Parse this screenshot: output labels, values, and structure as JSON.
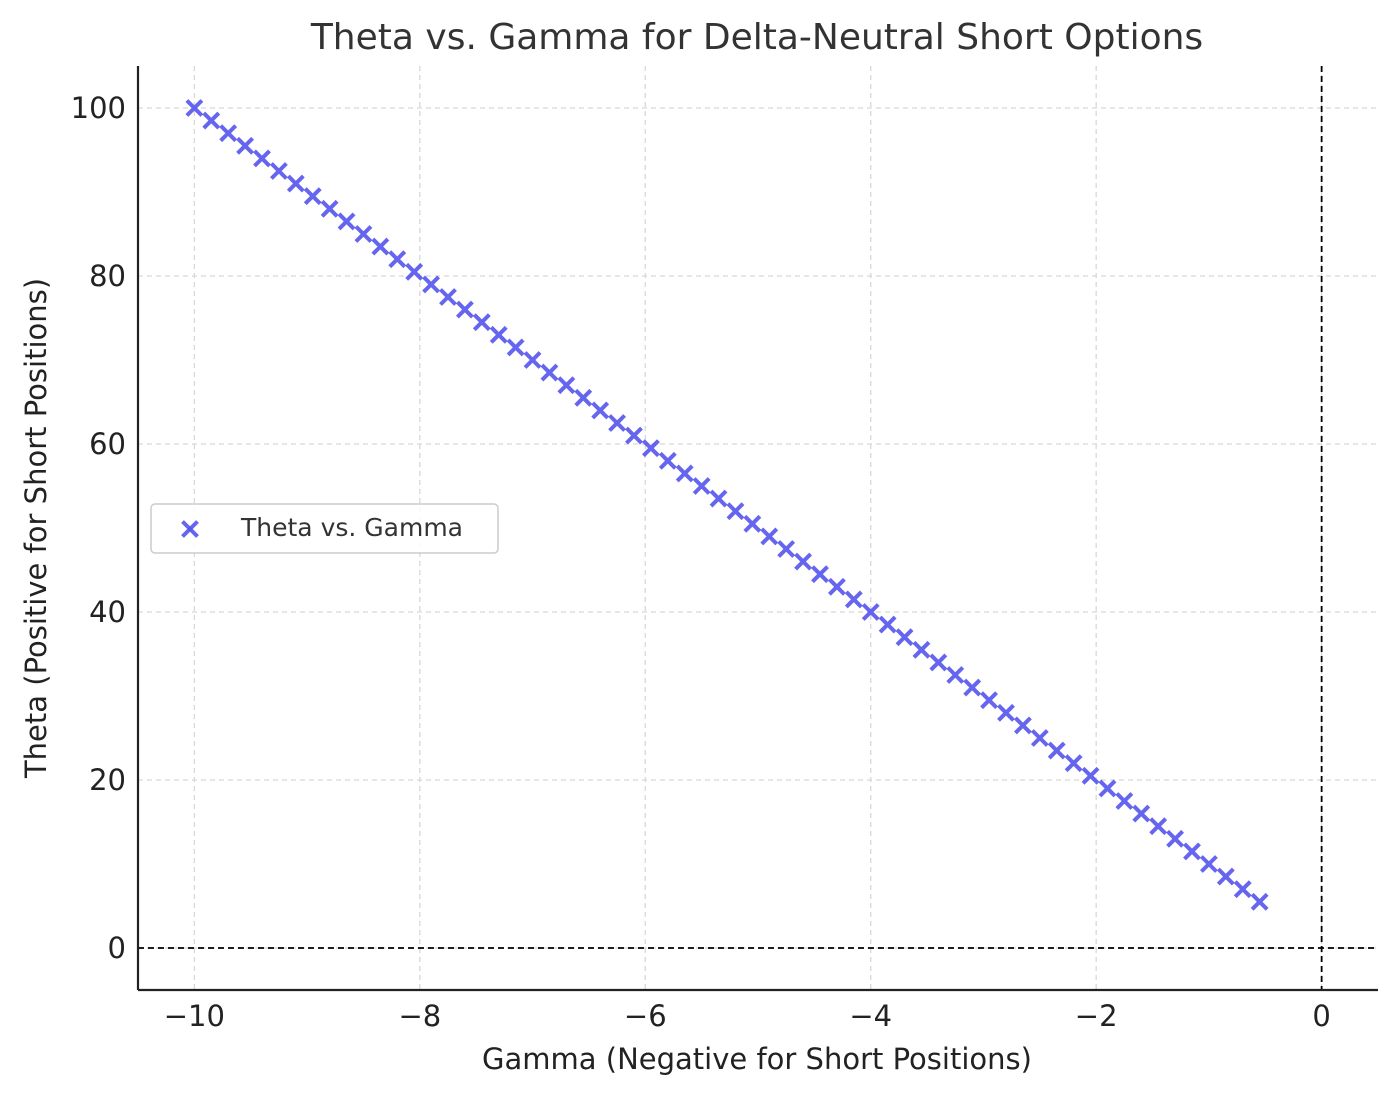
{
  "chart_data": {
    "type": "scatter",
    "title": "Theta vs. Gamma for Delta-Neutral Short Options",
    "xlabel": "Gamma (Negative for Short Positions)",
    "ylabel": "Theta (Positive for Short Positions)",
    "xlim": [
      -10.5,
      0.5
    ],
    "ylim": [
      -5,
      105
    ],
    "xticks": [
      -10,
      -8,
      -6,
      -4,
      -2,
      0
    ],
    "xtick_labels": [
      "−10",
      "−8",
      "−6",
      "−4",
      "−2",
      "0"
    ],
    "yticks": [
      0,
      20,
      40,
      60,
      80,
      100
    ],
    "ytick_labels": [
      "0",
      "20",
      "40",
      "60",
      "80",
      "100"
    ],
    "grid": true,
    "legend_position": "center-left",
    "reference_lines": {
      "horizontal_y": 0,
      "vertical_x": 0,
      "style": "dashed",
      "color": "#000000"
    },
    "series": [
      {
        "name": "Theta vs. Gamma",
        "marker": "x",
        "color": "#5555ee",
        "x": [
          -10.0,
          -9.85,
          -9.7,
          -9.55,
          -9.4,
          -9.25,
          -9.1,
          -8.95,
          -8.8,
          -8.65,
          -8.5,
          -8.35,
          -8.2,
          -8.05,
          -7.9,
          -7.75,
          -7.6,
          -7.45,
          -7.3,
          -7.15,
          -7.0,
          -6.85,
          -6.7,
          -6.55,
          -6.4,
          -6.25,
          -6.1,
          -5.95,
          -5.8,
          -5.65,
          -5.5,
          -5.35,
          -5.2,
          -5.05,
          -4.9,
          -4.75,
          -4.6,
          -4.45,
          -4.3,
          -4.15,
          -4.0,
          -3.85,
          -3.7,
          -3.55,
          -3.4,
          -3.25,
          -3.1,
          -2.95,
          -2.8,
          -2.65,
          -2.5,
          -2.35,
          -2.2,
          -2.05,
          -1.9,
          -1.75,
          -1.6,
          -1.45,
          -1.3,
          -1.15,
          -1.0,
          -0.85,
          -0.7,
          -0.55
        ],
        "y": [
          100.0,
          98.5,
          97.0,
          95.5,
          94.0,
          92.5,
          91.0,
          89.5,
          88.0,
          86.5,
          85.0,
          83.5,
          82.0,
          80.5,
          79.0,
          77.5,
          76.0,
          74.5,
          73.0,
          71.5,
          70.0,
          68.5,
          67.0,
          65.5,
          64.0,
          62.5,
          61.0,
          59.5,
          58.0,
          56.5,
          55.0,
          53.5,
          52.0,
          50.5,
          49.0,
          47.5,
          46.0,
          44.5,
          43.0,
          41.5,
          40.0,
          38.5,
          37.0,
          35.5,
          34.0,
          32.5,
          31.0,
          29.5,
          28.0,
          26.5,
          25.0,
          23.5,
          22.0,
          20.5,
          19.0,
          17.5,
          16.0,
          14.5,
          13.0,
          11.5,
          10.0,
          8.5,
          7.0,
          5.5
        ]
      }
    ]
  }
}
